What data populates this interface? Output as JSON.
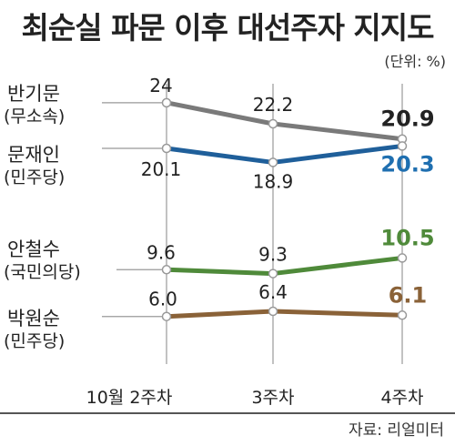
{
  "header": {
    "title": "최순실 파문 이후 대선주자 지지도",
    "unit": "(단위: %)"
  },
  "footer": {
    "source": "자료: 리얼미터"
  },
  "colors": {
    "grid": "#999999",
    "label": "#222222"
  },
  "chart_data": {
    "type": "line",
    "title": "최순실 파문 이후 대선주자 지지도",
    "categories": [
      "10월 2주차",
      "3주차",
      "4주차"
    ],
    "unit": "(단위: %)",
    "series": [
      {
        "name": "반기문",
        "party": "(무소속)",
        "values": [
          24,
          22.2,
          20.9
        ],
        "labels": [
          "24",
          "22.2",
          "20.9"
        ],
        "color": "#7a7a7a",
        "final_color": "#222222"
      },
      {
        "name": "문재인",
        "party": "(민주당)",
        "values": [
          20.1,
          18.9,
          20.3
        ],
        "labels": [
          "20.1",
          "18.9",
          "20.3"
        ],
        "color": "#1f5f9a",
        "final_color": "#1f6fb0"
      },
      {
        "name": "안철수",
        "party": "(국민의당)",
        "values": [
          9.6,
          9.3,
          10.5
        ],
        "labels": [
          "9.6",
          "9.3",
          "10.5"
        ],
        "color": "#4f8a3a",
        "final_color": "#4f8a3a"
      },
      {
        "name": "박원순",
        "party": "(민주당)",
        "values": [
          6.0,
          6.4,
          6.1
        ],
        "labels": [
          "6.0",
          "6.4",
          "6.1"
        ],
        "color": "#8a6238",
        "final_color": "#8a6238"
      }
    ]
  }
}
